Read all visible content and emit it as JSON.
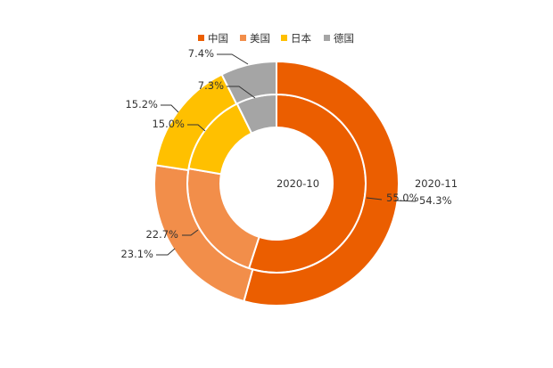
{
  "chart_data": {
    "type": "pie",
    "subtype": "nested-donut",
    "categories": [
      "中国",
      "美国",
      "日本",
      "德国"
    ],
    "colors": [
      "#EB5E00",
      "#F28E4A",
      "#FFC000",
      "#A5A5A5"
    ],
    "legend_position": "top",
    "series": [
      {
        "name": "2020-10",
        "ring": "inner",
        "values": [
          55.0,
          22.7,
          15.0,
          7.3
        ],
        "labels": [
          "55.0%",
          "22.7%",
          "15.0%",
          "7.3%"
        ]
      },
      {
        "name": "2020-11",
        "ring": "outer",
        "values": [
          54.3,
          23.1,
          15.2,
          7.4
        ],
        "labels": [
          "54.3%",
          "23.1%",
          "15.2%",
          "7.4%"
        ]
      }
    ]
  }
}
